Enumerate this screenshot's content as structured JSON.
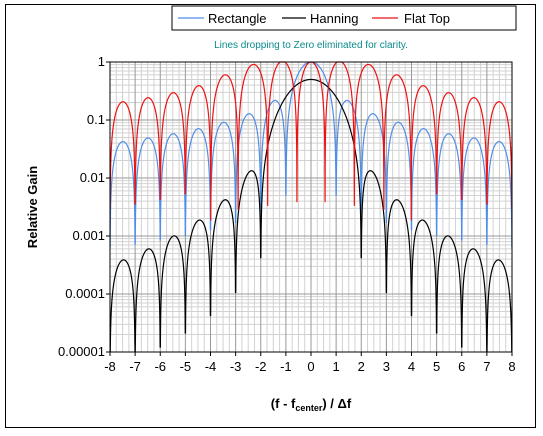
{
  "chart_data": {
    "type": "line",
    "title": "",
    "annotation": "Lines dropping to Zero eliminated for clarity.",
    "xlabel": {
      "main": "(f - f",
      "sub": "center",
      "tail": ") / Δf"
    },
    "ylabel": "Relative Gain",
    "xlim": [
      -8,
      8
    ],
    "ylim": [
      1e-05,
      1
    ],
    "y_scale": "log",
    "x_ticks": [
      "-8",
      "-7",
      "-6",
      "-5",
      "-4",
      "-3",
      "-2",
      "-1",
      "0",
      "1",
      "2",
      "3",
      "4",
      "5",
      "6",
      "7",
      "8"
    ],
    "y_ticks": [
      {
        "value": 1,
        "label": "1"
      },
      {
        "value": 0.1,
        "label": "0.1"
      },
      {
        "value": 0.01,
        "label": "0.01"
      },
      {
        "value": 0.001,
        "label": "0.001"
      },
      {
        "value": 0.0001,
        "label": "0.0001"
      },
      {
        "value": 1e-05,
        "label": "0.00001"
      }
    ],
    "grid": true,
    "legend_position": "top",
    "series": [
      {
        "name": "Rectangle",
        "color": "#4f8ee8",
        "window": "rectangle"
      },
      {
        "name": "Hanning",
        "color": "#000000",
        "window": "hanning"
      },
      {
        "name": "Flat Top",
        "color": "#ee1111",
        "window": "flattop"
      }
    ]
  },
  "colors": {
    "major_grid": "#999999",
    "minor_grid": "#d2d2d2",
    "annotation": "#0a8a8a",
    "plot_border": "#000000"
  }
}
